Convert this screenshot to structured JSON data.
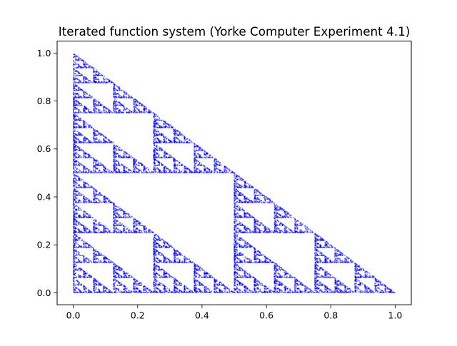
{
  "chart_data": {
    "type": "scatter",
    "title": "Iterated function system (Yorke Computer Experiment 4.1)",
    "xlabel": "",
    "ylabel": "",
    "xlim": [
      -0.05,
      1.05
    ],
    "ylim": [
      -0.05,
      1.05
    ],
    "x_ticks": [
      0.0,
      0.2,
      0.4,
      0.6,
      0.8,
      1.0
    ],
    "y_ticks": [
      0.0,
      0.2,
      0.4,
      0.6,
      0.8,
      1.0
    ],
    "x_tick_labels": [
      "0.0",
      "0.2",
      "0.4",
      "0.6",
      "0.8",
      "1.0"
    ],
    "y_tick_labels": [
      "0.0",
      "0.2",
      "0.4",
      "0.6",
      "0.8",
      "1.0"
    ],
    "grid": false,
    "legend": "none",
    "series": [
      {
        "marker_color": "#0000ff",
        "marker": "point",
        "description_of_set": "Sierpinski right triangle with vertices (0,0), (1,0), (0,1)",
        "vertices": [
          [
            0,
            0
          ],
          [
            1,
            0
          ],
          [
            0,
            1
          ]
        ]
      }
    ]
  }
}
